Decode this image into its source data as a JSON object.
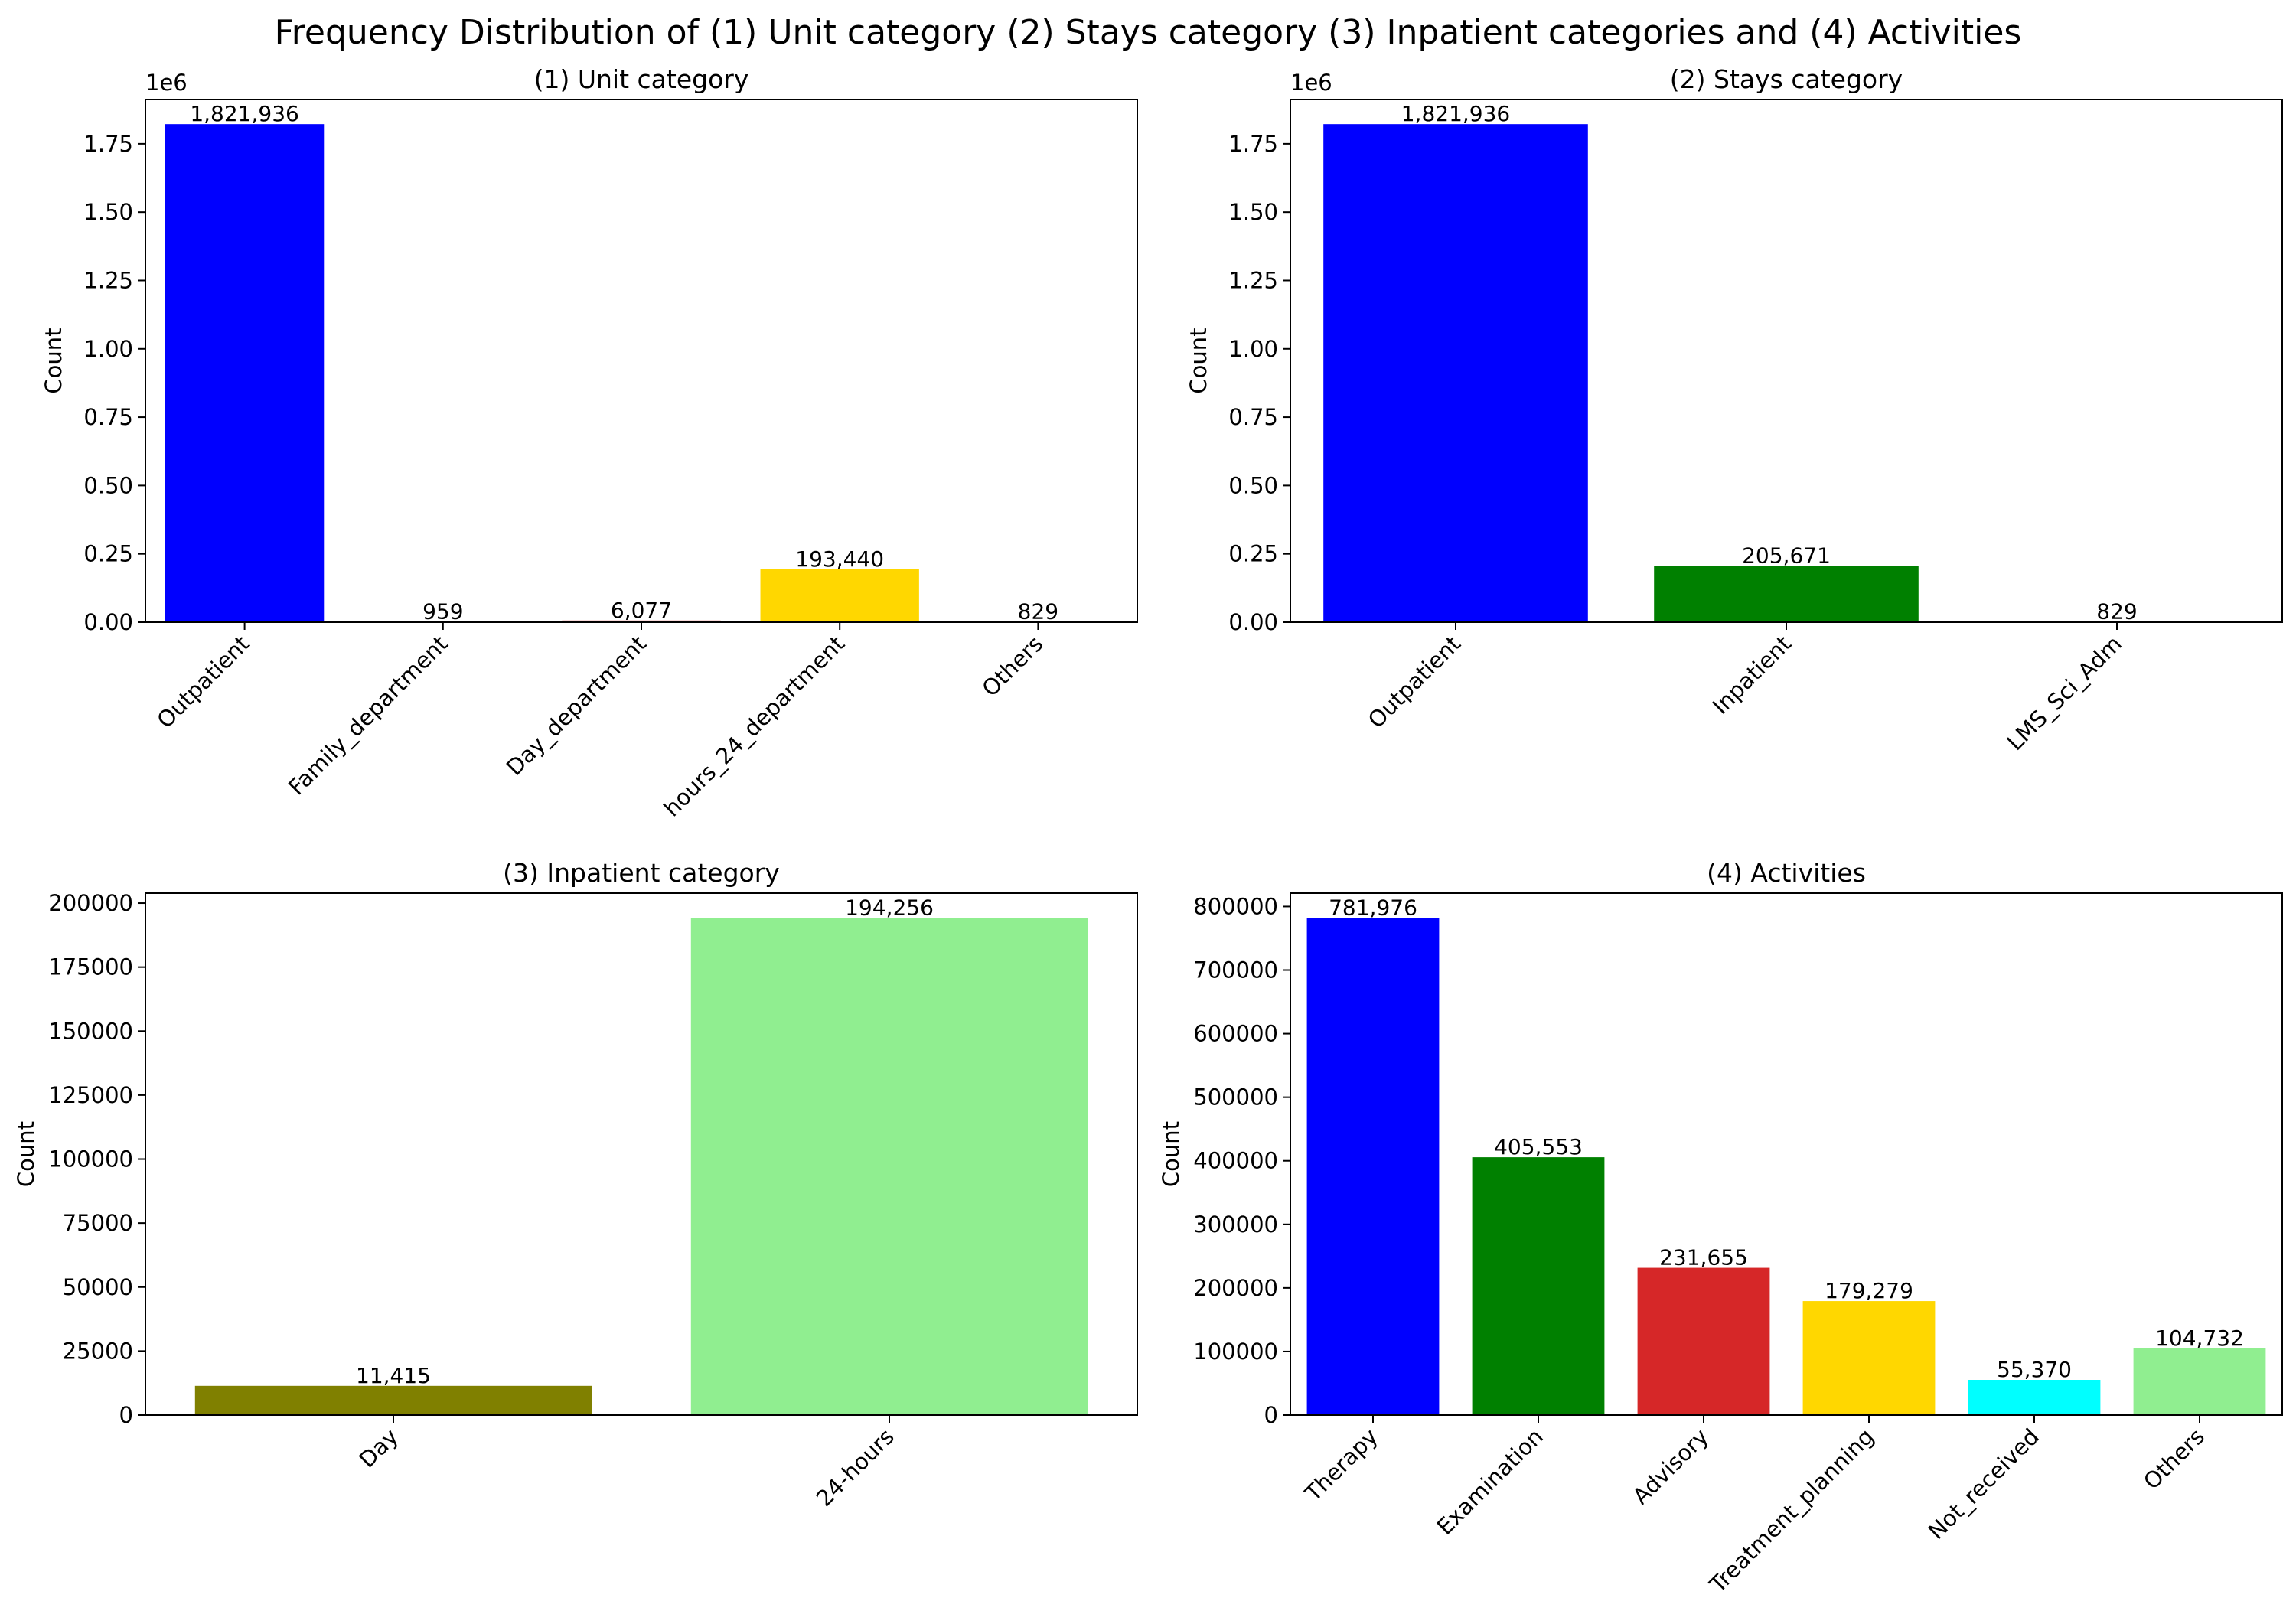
{
  "figure": {
    "title": "Frequency Distribution of (1) Unit category (2) Stays category (3) Inpatient categories and (4) Activities"
  },
  "chart_data": [
    {
      "type": "bar",
      "title": "(1) Unit category",
      "xlabel": "",
      "ylabel": "Count",
      "categories": [
        "Outpatient",
        "Family_department",
        "Day_department",
        "hours_24_department",
        "Others"
      ],
      "values": [
        1821936,
        959,
        6077,
        193440,
        829
      ],
      "data_labels": [
        "1,821,936",
        "959",
        "6,077",
        "193,440",
        "829"
      ],
      "colors": [
        "#0000ff",
        "#008000",
        "#d62728",
        "#ffd700",
        "#00ffff"
      ],
      "ylim": [
        0,
        1912000
      ],
      "yticks": [
        0,
        250000,
        500000,
        750000,
        1000000,
        1250000,
        1500000,
        1750000
      ],
      "ytick_labels": [
        "0.00",
        "0.25",
        "0.50",
        "0.75",
        "1.00",
        "1.25",
        "1.50",
        "1.75"
      ],
      "y_offset_text": "1e6",
      "grid": false,
      "legend": "none"
    },
    {
      "type": "bar",
      "title": "(2) Stays category",
      "xlabel": "",
      "ylabel": "Count",
      "categories": [
        "Outpatient",
        "Inpatient",
        "LMS_Sci_Adm"
      ],
      "values": [
        1821936,
        205671,
        829
      ],
      "data_labels": [
        "1,821,936",
        "205,671",
        "829"
      ],
      "colors": [
        "#0000ff",
        "#008000",
        "#d62728"
      ],
      "ylim": [
        0,
        1912000
      ],
      "yticks": [
        0,
        250000,
        500000,
        750000,
        1000000,
        1250000,
        1500000,
        1750000
      ],
      "ytick_labels": [
        "0.00",
        "0.25",
        "0.50",
        "0.75",
        "1.00",
        "1.25",
        "1.50",
        "1.75"
      ],
      "y_offset_text": "1e6",
      "grid": false,
      "legend": "none"
    },
    {
      "type": "bar",
      "title": "(3) Inpatient category",
      "xlabel": "",
      "ylabel": "Count",
      "categories": [
        "Day",
        "24-hours"
      ],
      "values": [
        11415,
        194256
      ],
      "data_labels": [
        "11,415",
        "194,256"
      ],
      "colors": [
        "#808000",
        "#90ee90"
      ],
      "ylim": [
        0,
        203900
      ],
      "yticks": [
        0,
        25000,
        50000,
        75000,
        100000,
        125000,
        150000,
        175000,
        200000
      ],
      "ytick_labels": [
        "0",
        "25000",
        "50000",
        "75000",
        "100000",
        "125000",
        "150000",
        "175000",
        "200000"
      ],
      "y_offset_text": "",
      "grid": false,
      "legend": "none"
    },
    {
      "type": "bar",
      "title": "(4) Activities",
      "xlabel": "",
      "ylabel": "Count",
      "categories": [
        "Therapy",
        "Examination",
        "Advisory",
        "Treatment_planning",
        "Not_received",
        "Others"
      ],
      "values": [
        781976,
        405553,
        231655,
        179279,
        55370,
        104732
      ],
      "data_labels": [
        "781,976",
        "405,553",
        "231,655",
        "179,279",
        "55,370",
        "104,732"
      ],
      "colors": [
        "#0000ff",
        "#008000",
        "#d62728",
        "#ffd700",
        "#00ffff",
        "#90ee90"
      ],
      "ylim": [
        0,
        821000
      ],
      "yticks": [
        0,
        100000,
        200000,
        300000,
        400000,
        500000,
        600000,
        700000,
        800000
      ],
      "ytick_labels": [
        "0",
        "100000",
        "200000",
        "300000",
        "400000",
        "500000",
        "600000",
        "700000",
        "800000"
      ],
      "y_offset_text": "",
      "grid": false,
      "legend": "none"
    }
  ]
}
